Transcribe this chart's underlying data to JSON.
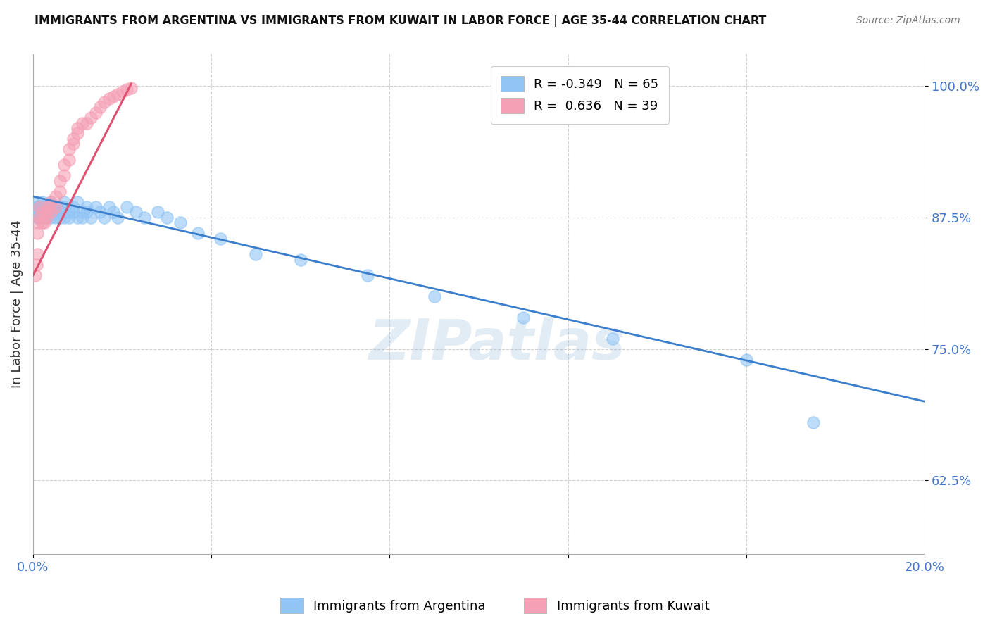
{
  "title": "IMMIGRANTS FROM ARGENTINA VS IMMIGRANTS FROM KUWAIT IN LABOR FORCE | AGE 35-44 CORRELATION CHART",
  "source": "Source: ZipAtlas.com",
  "ylabel": "In Labor Force | Age 35-44",
  "xlim": [
    0.0,
    0.2
  ],
  "ylim": [
    0.555,
    1.03
  ],
  "yticks": [
    0.625,
    0.75,
    0.875,
    1.0
  ],
  "yticklabels": [
    "62.5%",
    "75.0%",
    "87.5%",
    "100.0%"
  ],
  "argentina_color": "#92C5F5",
  "kuwait_color": "#F5A0B5",
  "argentina_R": -0.349,
  "argentina_N": 65,
  "kuwait_R": 0.636,
  "kuwait_N": 39,
  "argentina_line_color": "#3B7FCC",
  "kuwait_line_color": "#E05070",
  "watermark": "ZIPatlas",
  "argentina_x": [
    0.0005,
    0.0008,
    0.001,
    0.001,
    0.001,
    0.0012,
    0.0012,
    0.0015,
    0.0015,
    0.002,
    0.002,
    0.002,
    0.002,
    0.0025,
    0.0025,
    0.003,
    0.003,
    0.003,
    0.0035,
    0.004,
    0.004,
    0.004,
    0.0045,
    0.005,
    0.005,
    0.005,
    0.006,
    0.006,
    0.006,
    0.007,
    0.007,
    0.007,
    0.008,
    0.008,
    0.009,
    0.009,
    0.01,
    0.01,
    0.011,
    0.011,
    0.012,
    0.012,
    0.013,
    0.014,
    0.015,
    0.016,
    0.017,
    0.018,
    0.019,
    0.021,
    0.023,
    0.025,
    0.028,
    0.03,
    0.033,
    0.037,
    0.042,
    0.05,
    0.06,
    0.075,
    0.09,
    0.11,
    0.13,
    0.16,
    0.175
  ],
  "argentina_y": [
    0.885,
    0.88,
    0.875,
    0.885,
    0.89,
    0.88,
    0.875,
    0.885,
    0.88,
    0.875,
    0.885,
    0.88,
    0.89,
    0.875,
    0.885,
    0.88,
    0.875,
    0.885,
    0.88,
    0.875,
    0.885,
    0.89,
    0.88,
    0.875,
    0.885,
    0.88,
    0.875,
    0.885,
    0.88,
    0.885,
    0.875,
    0.89,
    0.88,
    0.875,
    0.885,
    0.88,
    0.875,
    0.89,
    0.88,
    0.875,
    0.885,
    0.88,
    0.875,
    0.885,
    0.88,
    0.875,
    0.885,
    0.88,
    0.875,
    0.885,
    0.88,
    0.875,
    0.88,
    0.875,
    0.87,
    0.86,
    0.855,
    0.84,
    0.835,
    0.82,
    0.8,
    0.78,
    0.76,
    0.74,
    0.68
  ],
  "kuwait_x": [
    0.0005,
    0.0008,
    0.001,
    0.001,
    0.0012,
    0.0015,
    0.0015,
    0.002,
    0.002,
    0.0025,
    0.003,
    0.003,
    0.0035,
    0.004,
    0.004,
    0.005,
    0.005,
    0.006,
    0.006,
    0.007,
    0.007,
    0.008,
    0.008,
    0.009,
    0.009,
    0.01,
    0.01,
    0.011,
    0.012,
    0.013,
    0.014,
    0.015,
    0.016,
    0.017,
    0.018,
    0.019,
    0.02,
    0.021,
    0.022
  ],
  "kuwait_y": [
    0.82,
    0.83,
    0.84,
    0.86,
    0.87,
    0.875,
    0.885,
    0.87,
    0.88,
    0.87,
    0.88,
    0.875,
    0.885,
    0.88,
    0.89,
    0.885,
    0.895,
    0.9,
    0.91,
    0.915,
    0.925,
    0.93,
    0.94,
    0.945,
    0.95,
    0.955,
    0.96,
    0.965,
    0.965,
    0.97,
    0.975,
    0.98,
    0.985,
    0.988,
    0.99,
    0.992,
    0.995,
    0.997,
    0.998
  ]
}
